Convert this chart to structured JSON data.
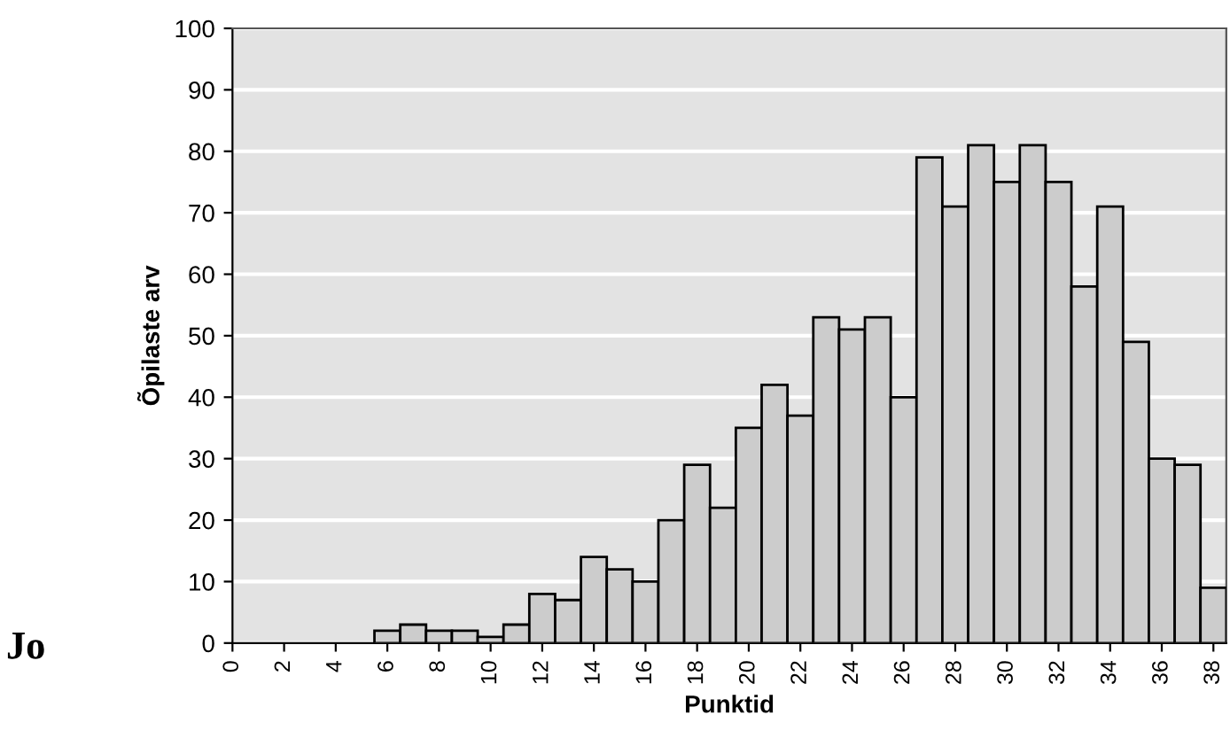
{
  "chart_data": {
    "type": "histogram",
    "xlabel": "Punktid",
    "ylabel": "Õpilaste arv",
    "bins": [
      5.5,
      6.5,
      7.5,
      8.5,
      9.5,
      10.5,
      11.5,
      12.5,
      13.5,
      14.5,
      15.5,
      16.5,
      17.5,
      18.5,
      19.5,
      20.5,
      21.5,
      22.5,
      23.5,
      24.5,
      25.5,
      26.5,
      27.5,
      28.5,
      29.5,
      30.5,
      31.5,
      32.5,
      33.5,
      34.5,
      35.5,
      36.5,
      37.5,
      38.5
    ],
    "values": [
      2,
      3,
      2,
      2,
      1,
      3,
      8,
      7,
      14,
      12,
      10,
      20,
      29,
      22,
      35,
      42,
      37,
      53,
      51,
      53,
      40,
      79,
      71,
      81,
      75,
      81,
      75,
      58,
      71,
      49,
      30,
      29,
      9
    ],
    "color": "#cccccc",
    "xlim": [
      0,
      38.5
    ],
    "xticks": [
      0,
      2,
      4,
      6,
      8,
      10,
      12,
      14,
      16,
      18,
      20,
      22,
      24,
      26,
      28,
      30,
      32,
      34,
      36,
      38
    ],
    "ylim": [
      0,
      100
    ],
    "yticks": [
      0,
      10,
      20,
      30,
      40,
      50,
      60,
      70,
      80,
      90,
      100
    ],
    "grid": "y",
    "annotations": [
      "Jo"
    ]
  }
}
